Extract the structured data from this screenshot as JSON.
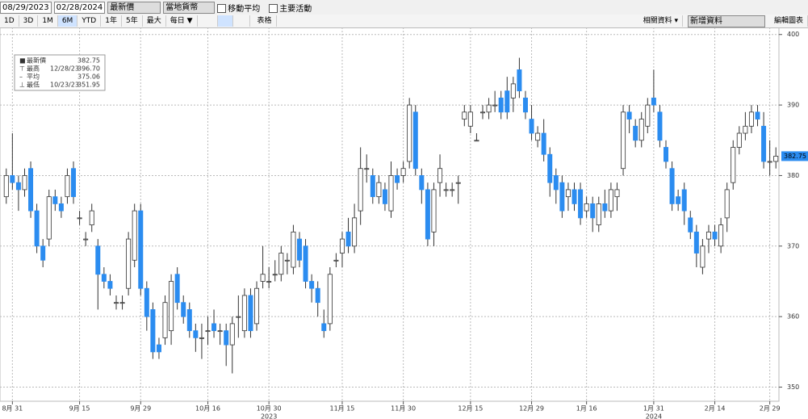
{
  "toolbar": {
    "start_date": "08/29/2023",
    "end_date": "02/28/2024",
    "field": "最新價",
    "currency": "當地貨幣",
    "moving_avg": "移動平均",
    "events": "主要活動",
    "periods": [
      "1D",
      "3D",
      "1M",
      "6M",
      "YTD",
      "1年",
      "5年",
      "最大"
    ],
    "frequency": "每日 ▼",
    "table": "表格",
    "related": "相關資料 ▾",
    "add_data": "新增資料",
    "edit_chart": "編輯圖表"
  },
  "chart_data": {
    "type": "candlestick",
    "stats": [
      {
        "label": "最新價",
        "date": null,
        "value": "382.75"
      },
      {
        "label": "最高",
        "date": "12/28/23",
        "value": "396.70"
      },
      {
        "label": "平均",
        "date": null,
        "value": "375.06"
      },
      {
        "label": "最低",
        "date": "10/23/23",
        "value": "351.95"
      }
    ],
    "up_color": "#ffffff",
    "down_color": "#2b8cf0",
    "outline_color": "#333333",
    "ylim": [
      348,
      401
    ],
    "yticks": [
      350,
      360,
      370,
      380,
      390,
      400
    ],
    "grid": true,
    "categories": [
      null,
      "8月 31",
      null,
      null,
      null,
      null,
      null,
      null,
      null,
      null,
      null,
      null,
      "9月 15",
      null,
      null,
      null,
      null,
      null,
      null,
      null,
      null,
      null,
      "9月 29",
      null,
      null,
      null,
      null,
      null,
      null,
      null,
      null,
      null,
      null,
      "10月 16",
      null,
      null,
      null,
      null,
      null,
      null,
      null,
      null,
      null,
      "10月 30",
      null,
      null,
      null,
      null,
      null,
      null,
      null,
      null,
      null,
      null,
      null,
      "11月 15",
      null,
      null,
      null,
      null,
      null,
      null,
      null,
      null,
      null,
      "11月 30",
      null,
      null,
      null,
      null,
      null,
      null,
      null,
      null,
      null,
      null,
      "12月 15",
      null,
      null,
      null,
      null,
      null,
      null,
      null,
      null,
      null,
      "12月 29",
      null,
      null,
      null,
      null,
      null,
      null,
      null,
      null,
      "1月 16",
      null,
      null,
      null,
      null,
      null,
      null,
      null,
      null,
      null,
      null,
      "1月 31",
      null,
      null,
      null,
      null,
      null,
      null,
      null,
      null,
      null,
      "2月 14",
      null,
      null,
      null,
      null,
      null,
      null,
      null,
      null,
      "2月 29",
      null
    ],
    "year_labels": [
      {
        "label": "2023",
        "at": "10月 30"
      },
      {
        "label": "2024",
        "at": "1月 31"
      }
    ],
    "open": [
      377,
      380,
      379,
      378,
      381,
      375,
      370,
      371,
      377,
      376,
      377,
      381,
      374,
      371,
      373,
      370,
      366,
      365,
      362,
      362,
      364,
      368,
      375,
      364,
      361,
      356,
      357,
      358,
      366,
      362,
      361,
      358,
      357,
      358,
      359,
      358,
      358,
      356,
      360,
      358,
      363,
      359,
      365,
      365,
      366,
      366,
      368,
      367,
      371,
      370,
      365,
      364,
      359,
      359,
      368,
      369,
      372,
      370,
      375,
      381,
      380,
      377,
      378,
      375,
      380,
      380,
      382,
      389,
      380,
      378,
      372,
      379,
      378,
      378,
      379,
      388,
      387,
      385,
      389,
      389,
      390,
      391,
      392,
      391,
      395,
      391,
      388,
      385,
      386,
      383,
      380,
      379,
      377,
      378,
      378,
      375,
      376,
      373,
      376,
      375,
      377,
      381,
      389,
      387,
      385,
      387,
      391,
      389,
      384,
      381,
      377,
      378,
      374,
      372,
      367,
      371,
      372,
      370,
      374,
      379,
      384,
      386,
      387,
      389,
      387,
      382,
      382
    ],
    "high": [
      381,
      386,
      380,
      381,
      382,
      376,
      371,
      378,
      378,
      377,
      381,
      382,
      375,
      372,
      376,
      371,
      367,
      366,
      363,
      363,
      372,
      376,
      376,
      365,
      362,
      357,
      363,
      366,
      367,
      363,
      362,
      359,
      359,
      360,
      361,
      359,
      359,
      360,
      363,
      364,
      364,
      365,
      370,
      367,
      368,
      370,
      369,
      373,
      372,
      371,
      366,
      365,
      361,
      367,
      369,
      372,
      374,
      376,
      384,
      383,
      381,
      380,
      379,
      382,
      381,
      382,
      391,
      390,
      381,
      379,
      379,
      383,
      379,
      379,
      380,
      390,
      390,
      386,
      390,
      391,
      392,
      392,
      394,
      394,
      396.7,
      392,
      390,
      387,
      388,
      384,
      381,
      380,
      379,
      379,
      379,
      377,
      377,
      377,
      378,
      379,
      379,
      390,
      390,
      388,
      389,
      391,
      395,
      390,
      385,
      382,
      378,
      379,
      375,
      373,
      371,
      373,
      373,
      374,
      379,
      385,
      387,
      389,
      390,
      390,
      389,
      385,
      384
    ],
    "low": [
      376,
      378,
      375,
      377,
      374,
      369,
      367,
      370,
      375,
      374,
      376,
      376,
      373,
      370,
      372,
      361,
      364,
      363,
      361,
      361,
      363,
      367,
      363,
      358,
      354,
      354,
      356,
      356,
      361,
      359,
      357,
      355,
      354,
      356,
      357,
      356,
      353,
      351.95,
      357,
      357,
      357,
      358,
      364,
      364,
      365,
      365,
      366,
      366,
      367,
      364,
      362,
      360,
      357,
      358,
      367,
      367,
      369,
      369,
      373,
      379,
      376,
      376,
      375,
      374,
      378,
      379,
      381,
      380,
      376,
      370,
      370,
      377,
      377,
      377,
      376,
      387,
      386,
      385,
      388,
      388,
      389,
      388,
      388,
      389,
      391,
      388,
      385,
      384,
      382,
      377,
      376,
      374,
      375,
      375,
      373,
      374,
      372,
      372,
      374,
      374,
      375,
      380,
      386,
      384,
      384,
      386,
      389,
      384,
      381,
      375,
      375,
      373,
      371,
      367,
      366,
      369,
      370,
      369,
      372,
      378,
      383,
      385,
      386,
      387,
      381,
      380,
      381
    ],
    "close": [
      380,
      379,
      378,
      380,
      375,
      370,
      368,
      377,
      376,
      375,
      380,
      377,
      374,
      371,
      375,
      366,
      365,
      364,
      362,
      362,
      371,
      375,
      364,
      360,
      355,
      355,
      362,
      365,
      362,
      360,
      358,
      357,
      357,
      358,
      358,
      358,
      356,
      359,
      360,
      363,
      358,
      364,
      366,
      365,
      366,
      369,
      368,
      372,
      368,
      365,
      364,
      362,
      358,
      366,
      368,
      371,
      370,
      374,
      381,
      381,
      377,
      379,
      376,
      380,
      379,
      381,
      390,
      381,
      378,
      371,
      378,
      381,
      378,
      378,
      379,
      389,
      389,
      385,
      389,
      390,
      390,
      389,
      389,
      393,
      392,
      389,
      386,
      386,
      383,
      379,
      378,
      375,
      378,
      376,
      374,
      376,
      374,
      376,
      375,
      378,
      378,
      389,
      388,
      385,
      388,
      390,
      390,
      385,
      382,
      376,
      376,
      375,
      372,
      369,
      370,
      372,
      371,
      373,
      378,
      384,
      386,
      387,
      389,
      388,
      382,
      382,
      382.75
    ]
  }
}
